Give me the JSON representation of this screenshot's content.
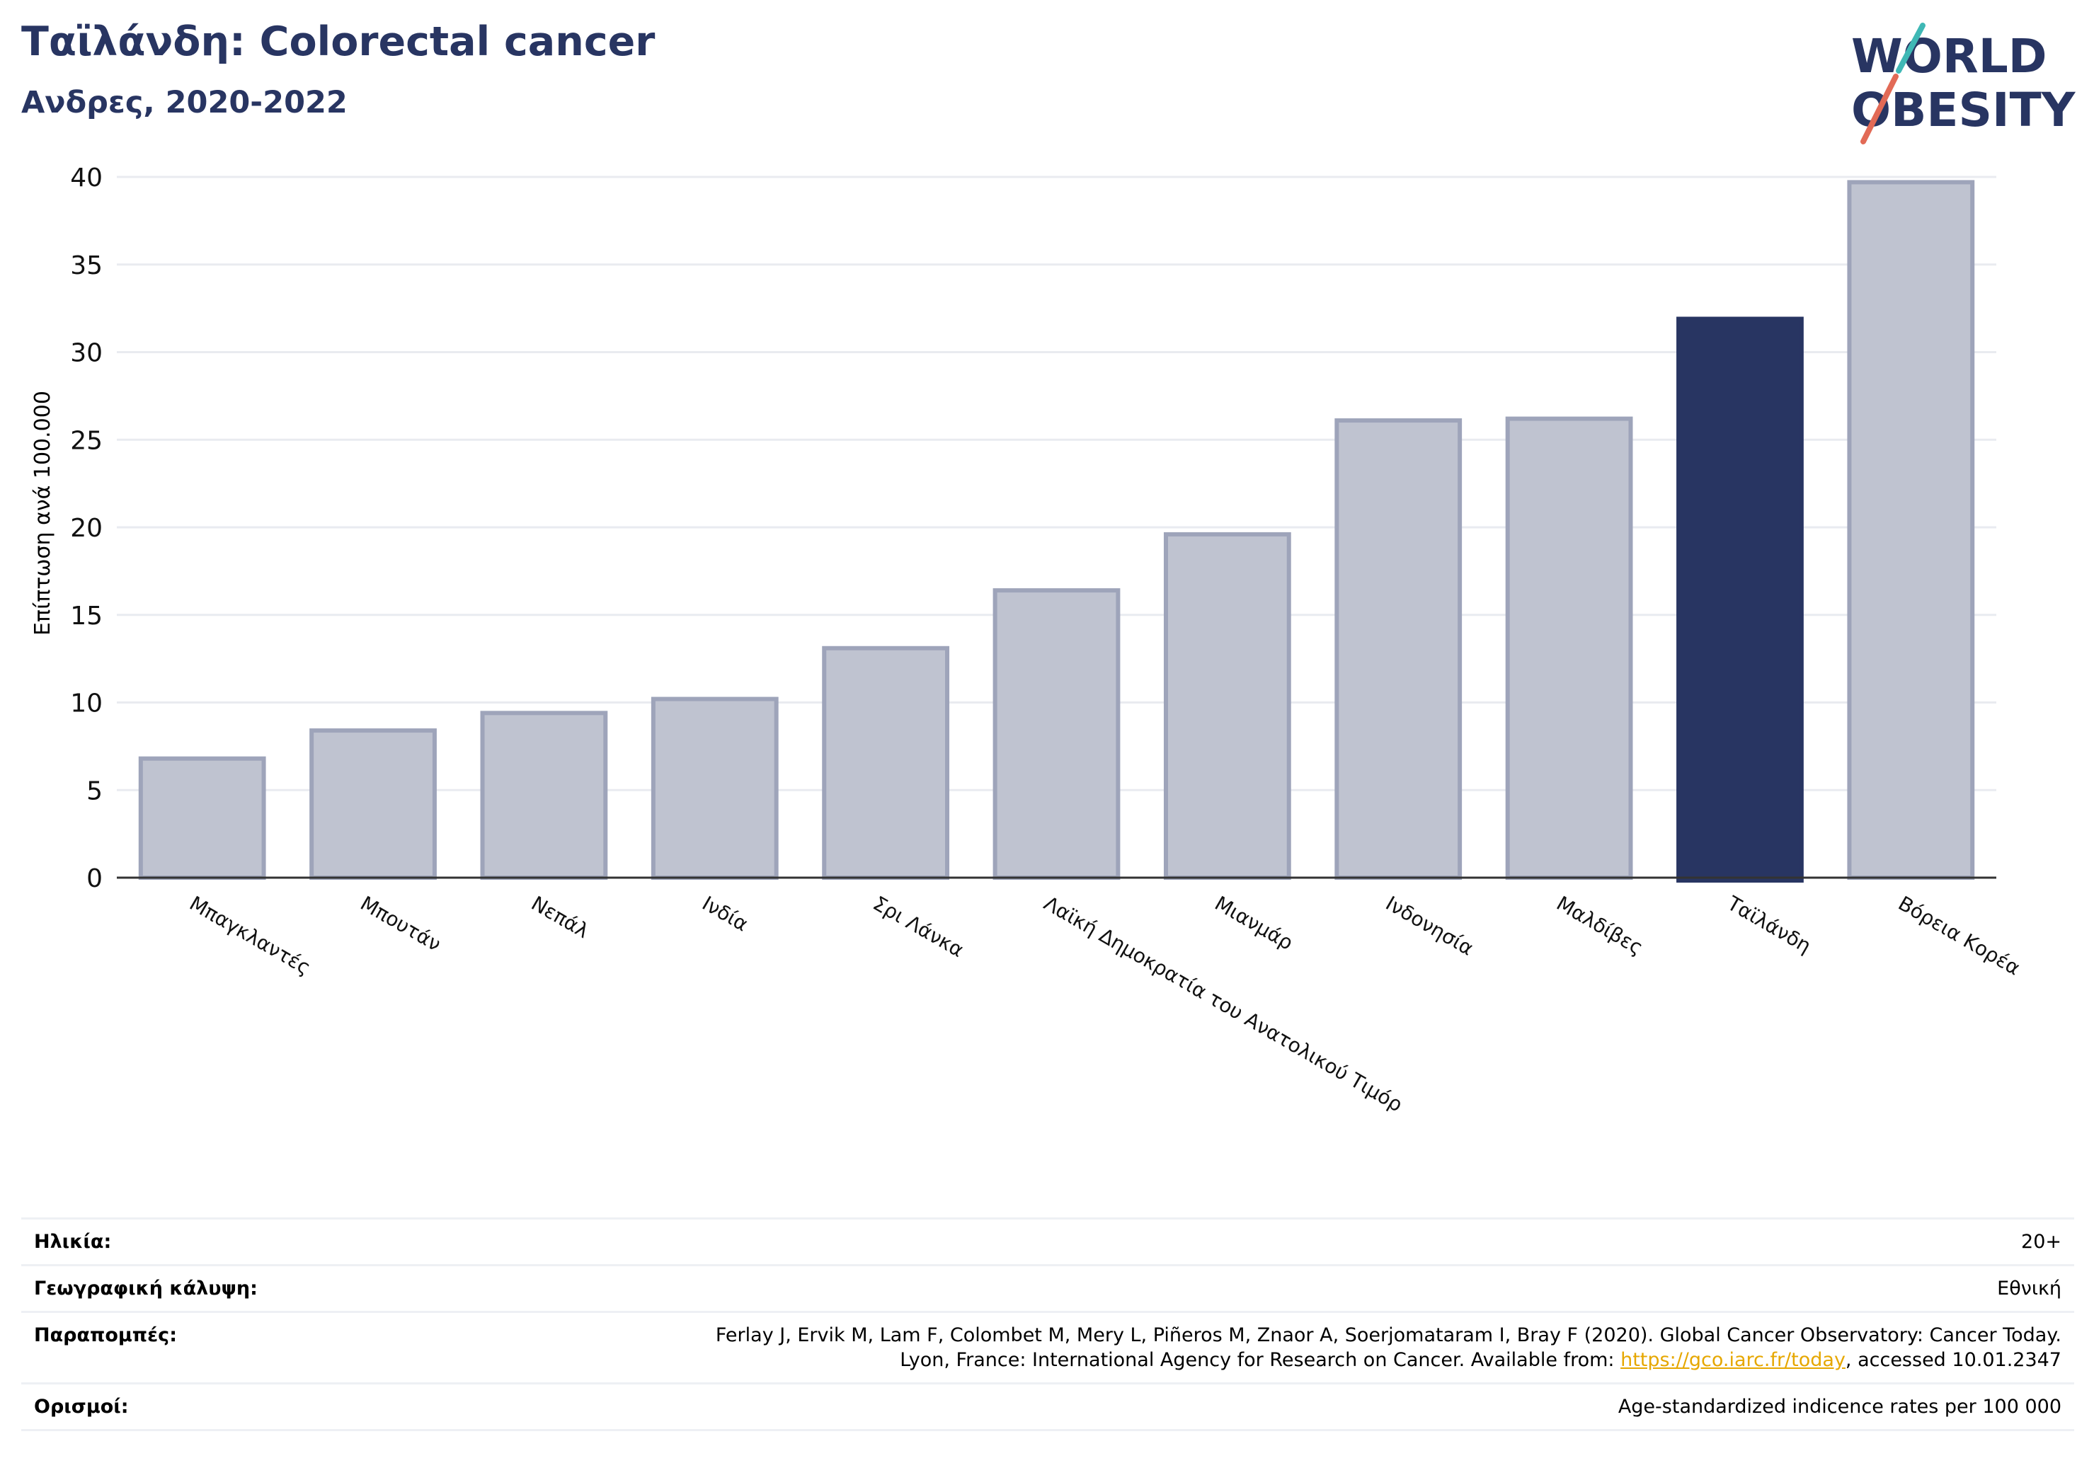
{
  "header": {
    "title": "Ταϊλάνδη: Colorectal cancer",
    "subtitle": "Ανδρες, 2020-2022"
  },
  "logo": {
    "line1": "WORLD",
    "line2": "OBESITY",
    "text_color": "#283562",
    "slash_colors": [
      "#e26a56",
      "#3fb8b5"
    ]
  },
  "chart_data": {
    "type": "bar",
    "ylabel": "Επίπτωση ανά 100.000",
    "xlabel": "",
    "ylim": [
      0,
      40
    ],
    "yticks": [
      0,
      5,
      10,
      15,
      20,
      25,
      30,
      35,
      40
    ],
    "grid": true,
    "categories": [
      "Μπαγκλαντές",
      "Μπουτάν",
      "Νεπάλ",
      "Ινδία",
      "Σρι Λάνκα",
      "Λαϊκή Δημοκρατία του Ανατολικού Τιμόρ",
      "Μιανμάρ",
      "Ινδονησία",
      "Μαλδίβες",
      "Ταϊλάνδη",
      "Βόρεια Κορέα"
    ],
    "values": [
      6.8,
      8.4,
      9.4,
      10.2,
      13.1,
      16.4,
      19.6,
      26.1,
      26.2,
      31.9,
      39.7
    ],
    "highlight": "Ταϊλάνδη",
    "colors": {
      "bar_fill": "#bfc3d0",
      "bar_border": "#9ea4ba",
      "highlight": "#283562",
      "grid": "#e9ebf0",
      "axis": "#333333"
    }
  },
  "meta": {
    "age_label": "Ηλικία:",
    "age_value": "20+",
    "coverage_label": "Γεωγραφική κάλυψη:",
    "coverage_value": "Εθνική",
    "refs_label": "Παραπομπές:",
    "refs_line1": "Ferlay J, Ervik M, Lam F, Colombet M, Mery L, Piñeros M, Znaor A, Soerjomataram I, Bray F (2020). Global Cancer Observatory: Cancer Today.",
    "refs_line2_pre": "Lyon, France: International Agency for Research on Cancer. Available from: ",
    "refs_link": "https://gco.iarc.fr/today",
    "refs_line2_post": ", accessed 10.01.2347",
    "defs_label": "Ορισμοί:",
    "defs_value": "Age-standardized indicence rates per 100 000"
  }
}
